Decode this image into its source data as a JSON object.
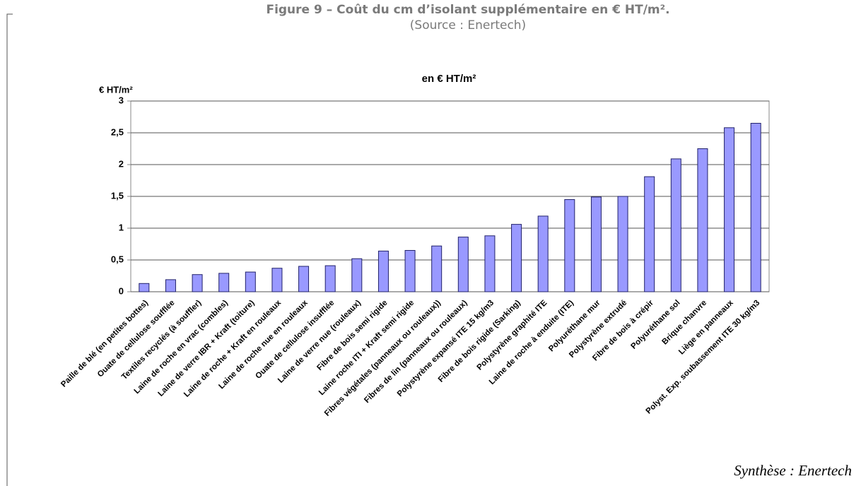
{
  "caption": {
    "title": "Figure 9 – Coût du cm d’isolant supplémentaire en € HT/m².",
    "source": "(Source : Enertech)"
  },
  "footer": "Synthèse : Enertech",
  "chart_data": {
    "type": "bar",
    "title": "en € HT/m²",
    "y_label": "€ HT/m²",
    "categories": [
      "Paille de blé (en petites bottes)",
      "Ouate de cellulose soufflée",
      "Textiles recyclés (à souffler)",
      "Laine de roche en vrac (combles)",
      "Laine de verre IBR + Kraft (toiture)",
      "Laine de roche + Kraft en rouleaux",
      "Laine de roche nue en rouleaux",
      "Ouate de cellulose insufflée",
      "Laine de verre nue (rouleaux)",
      "Fibre de bois semi rigide",
      "Laine roche ITI + Kraft semi rigide",
      "Fibres végétales (panneaux ou rouleaux))",
      "Fibres de lin (panneaux ou rouleaux)",
      "Polystyrène expansé ITE 15 kg/m3",
      "Fibre de bois rigide (Sarking)",
      "Polystyrène graphité ITE",
      "Laine de roche à enduite (ITE)",
      "Polyuréthane mur",
      "Polystyrène extrudé",
      "Fibre de bois à crépir",
      "Polyuréthane sol",
      "Brique chanvre",
      "Liège en panneaux",
      "Polyst. Exp. soubassement ITE 30 kg/m3"
    ],
    "values": [
      0.13,
      0.19,
      0.27,
      0.29,
      0.31,
      0.37,
      0.4,
      0.41,
      0.52,
      0.64,
      0.65,
      0.72,
      0.86,
      0.88,
      1.06,
      1.19,
      1.45,
      1.49,
      1.5,
      1.81,
      2.09,
      2.25,
      2.58,
      2.65
    ],
    "color": "#9999ff",
    "ylim": [
      0,
      3
    ],
    "yticks": [
      0,
      {
        "value": 0.5,
        "label": "0,5"
      },
      1,
      {
        "value": 1.5,
        "label": "1,5"
      },
      2,
      {
        "value": 2.5,
        "label": "2,5"
      },
      3
    ],
    "grid": true
  }
}
